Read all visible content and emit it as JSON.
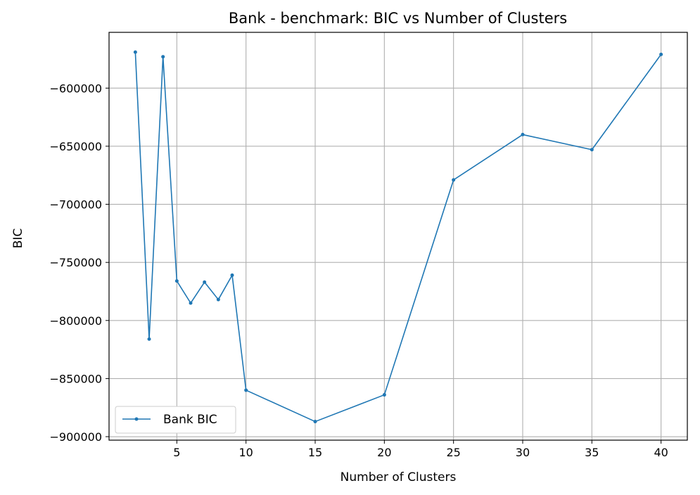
{
  "chart_data": {
    "type": "line",
    "title": "Bank - benchmark: BIC vs Number of Clusters",
    "xlabel": "Number of Clusters",
    "ylabel": "BIC",
    "xlim": [
      0.1,
      41.9
    ],
    "ylim": [
      -903000,
      -552000
    ],
    "x_ticks": [
      5,
      10,
      15,
      20,
      25,
      30,
      35,
      40
    ],
    "y_ticks": [
      -900000,
      -850000,
      -800000,
      -750000,
      -700000,
      -650000,
      -600000
    ],
    "grid": true,
    "legend_position": "lower-left",
    "series": [
      {
        "name": "Bank BIC",
        "color": "#1f77b4",
        "marker": "circle",
        "x": [
          2,
          3,
          4,
          5,
          6,
          7,
          8,
          9,
          10,
          15,
          20,
          25,
          30,
          35,
          40
        ],
        "y": [
          -569000,
          -816000,
          -573000,
          -766000,
          -785000,
          -767000,
          -782000,
          -761000,
          -860000,
          -887000,
          -864000,
          -679000,
          -640000,
          -653000,
          -571000
        ]
      }
    ]
  }
}
